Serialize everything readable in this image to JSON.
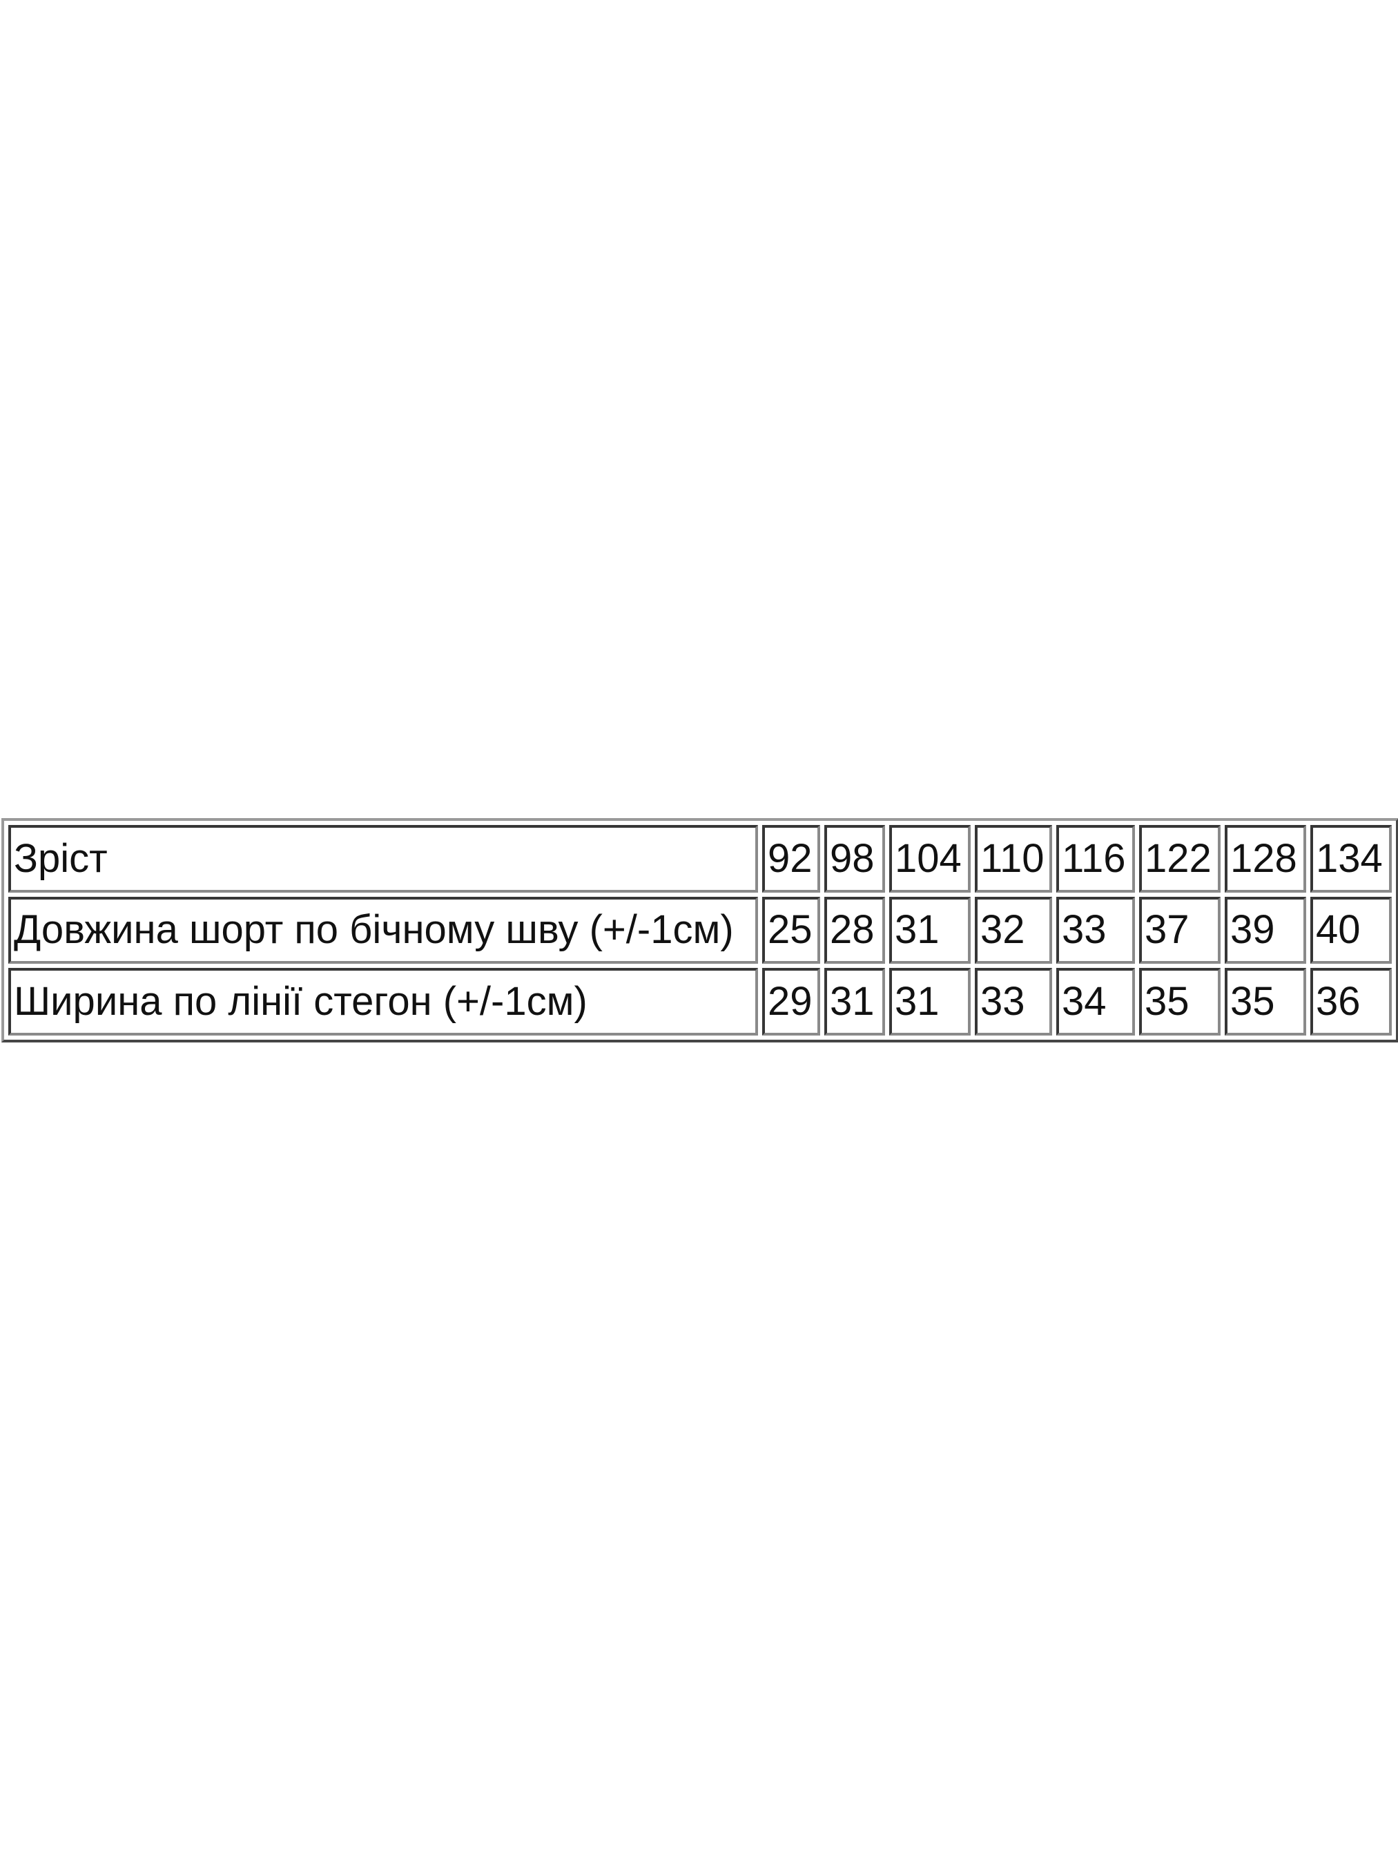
{
  "table": {
    "rows": [
      {
        "label": "Зріст",
        "values": [
          "92",
          "98",
          "104",
          "110",
          "116",
          "122",
          "128",
          "134"
        ]
      },
      {
        "label": "Довжина шорт по бічному шву (+/-1см)",
        "values": [
          "25",
          "28",
          "31",
          "32",
          "33",
          "37",
          "39",
          "40"
        ]
      },
      {
        "label": "Ширина по лінії стегон (+/-1см)",
        "values": [
          "29",
          "31",
          "31",
          "33",
          "34",
          "35",
          "35",
          "36"
        ]
      }
    ]
  }
}
